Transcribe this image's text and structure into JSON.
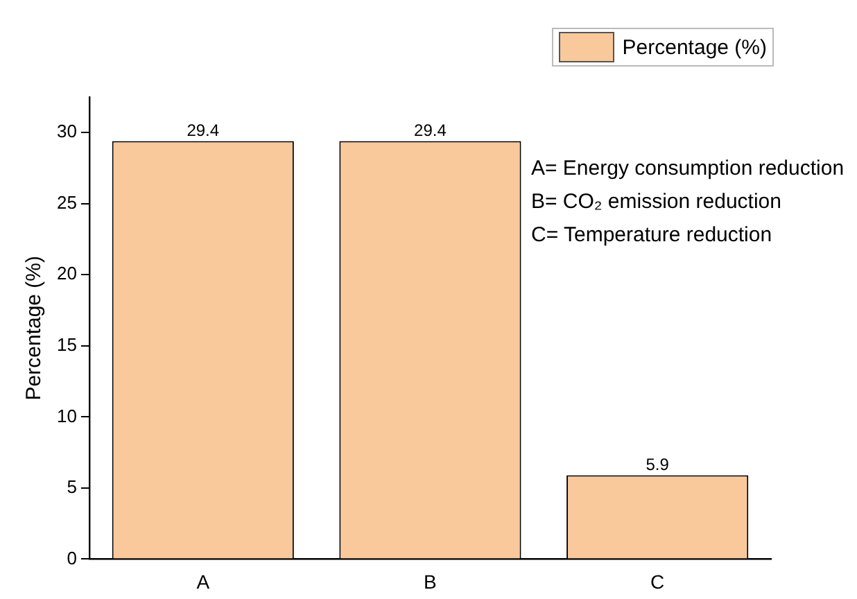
{
  "chart_data": {
    "type": "bar",
    "ylabel": "Percentage (%)",
    "categories": [
      "A",
      "B",
      "C"
    ],
    "series": [
      {
        "name": "Percentage (%)",
        "color": "#f9c89b",
        "values": [
          29.4,
          29.4,
          5.9
        ]
      }
    ],
    "ylim": [
      0,
      32.5
    ],
    "yticks": [
      0,
      5,
      10,
      15,
      20,
      25,
      30
    ],
    "grid": false,
    "legend": "top right",
    "data_labels": true,
    "annotations": [
      "A= Energy consumption reduction",
      "B= CO₂ emission reduction",
      "C= Temperature reduction"
    ]
  }
}
